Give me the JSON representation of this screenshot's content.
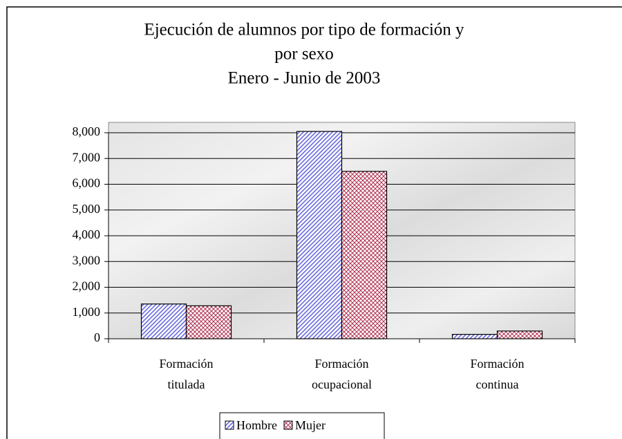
{
  "chart_data": {
    "type": "bar",
    "title": [
      "Ejecución de alumnos por tipo de formación y",
      "por sexo",
      "Enero - Junio de 2003"
    ],
    "categories": [
      "Formación titulada",
      "Formación ocupacional",
      "Formación continua"
    ],
    "series": [
      {
        "name": "Hombre",
        "color": "#6a6adf",
        "values": [
          1350,
          8050,
          170
        ]
      },
      {
        "name": "Mujer",
        "color": "#b03050",
        "values": [
          1280,
          6500,
          300
        ]
      }
    ],
    "ylim": [
      0,
      8000
    ],
    "yticks": [
      0,
      {
        "value": 1000,
        "label": "1,000"
      },
      {
        "value": 2000,
        "label": "2,000"
      },
      {
        "value": 3000,
        "label": "3,000"
      },
      {
        "value": 4000,
        "label": "4,000"
      },
      {
        "value": 5000,
        "label": "5,000"
      },
      {
        "value": 6000,
        "label": "6,000"
      },
      {
        "value": 7000,
        "label": "7,000"
      },
      {
        "value": 8000,
        "label": "8,000"
      }
    ],
    "grid": true,
    "legend": "bottom"
  }
}
